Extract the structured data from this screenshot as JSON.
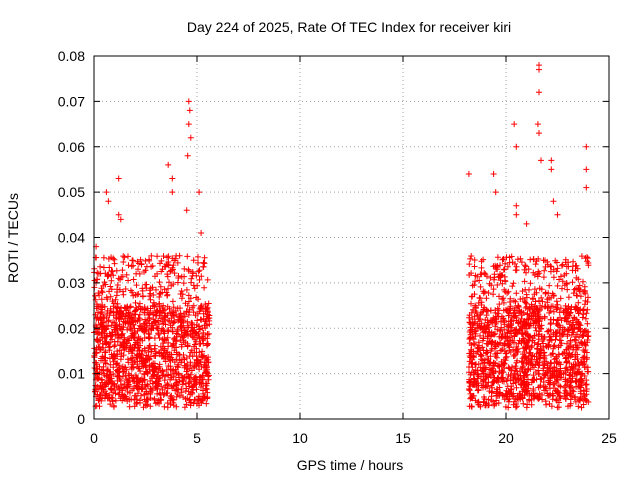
{
  "chart_data": {
    "type": "scatter",
    "title": "Day 224 of 2025, Rate Of TEC Index for receiver kiri",
    "xlabel": "GPS time / hours",
    "ylabel": "ROTI / TECUs",
    "xlim": [
      0,
      25
    ],
    "ylim": [
      0,
      0.08
    ],
    "x_ticks": [
      0,
      5,
      10,
      15,
      20,
      25
    ],
    "x_tick_labels": [
      "0",
      "5",
      "10",
      "15",
      "20",
      "25"
    ],
    "y_ticks": [
      0,
      0.01,
      0.02,
      0.03,
      0.04,
      0.05,
      0.06,
      0.07,
      0.08
    ],
    "y_tick_labels": [
      "0",
      "0.01",
      "0.02",
      "0.03",
      "0.04",
      "0.05",
      "0.06",
      "0.07",
      "0.08"
    ],
    "grid": true,
    "marker": "+",
    "marker_color": "#ff0000",
    "series": [
      {
        "name": "ROTI",
        "segments": [
          {
            "x_range": [
              0.0,
              5.6
            ],
            "typical_y_range": [
              0.004,
              0.025
            ],
            "note": "dense band, sampled"
          },
          {
            "x_range": [
              18.2,
              24.0
            ],
            "typical_y_range": [
              0.004,
              0.025
            ],
            "note": "dense band, sampled"
          }
        ],
        "notable_points": [
          {
            "x": 0.1,
            "y": 0.038
          },
          {
            "x": 0.1,
            "y": 0.03
          },
          {
            "x": 0.6,
            "y": 0.05
          },
          {
            "x": 0.7,
            "y": 0.048
          },
          {
            "x": 1.2,
            "y": 0.053
          },
          {
            "x": 1.2,
            "y": 0.045
          },
          {
            "x": 1.3,
            "y": 0.044
          },
          {
            "x": 3.6,
            "y": 0.056
          },
          {
            "x": 3.8,
            "y": 0.053
          },
          {
            "x": 3.8,
            "y": 0.05
          },
          {
            "x": 4.5,
            "y": 0.046
          },
          {
            "x": 4.6,
            "y": 0.07
          },
          {
            "x": 4.65,
            "y": 0.068
          },
          {
            "x": 4.6,
            "y": 0.065
          },
          {
            "x": 4.7,
            "y": 0.062
          },
          {
            "x": 4.55,
            "y": 0.058
          },
          {
            "x": 5.1,
            "y": 0.05
          },
          {
            "x": 5.2,
            "y": 0.041
          },
          {
            "x": 18.2,
            "y": 0.054
          },
          {
            "x": 19.4,
            "y": 0.054
          },
          {
            "x": 19.5,
            "y": 0.05
          },
          {
            "x": 20.4,
            "y": 0.065
          },
          {
            "x": 20.5,
            "y": 0.06
          },
          {
            "x": 20.5,
            "y": 0.047
          },
          {
            "x": 20.5,
            "y": 0.045
          },
          {
            "x": 21.0,
            "y": 0.043
          },
          {
            "x": 21.6,
            "y": 0.078
          },
          {
            "x": 21.6,
            "y": 0.077
          },
          {
            "x": 21.6,
            "y": 0.072
          },
          {
            "x": 21.55,
            "y": 0.065
          },
          {
            "x": 21.6,
            "y": 0.063
          },
          {
            "x": 21.7,
            "y": 0.057
          },
          {
            "x": 22.2,
            "y": 0.057
          },
          {
            "x": 22.2,
            "y": 0.055
          },
          {
            "x": 22.3,
            "y": 0.048
          },
          {
            "x": 22.5,
            "y": 0.045
          },
          {
            "x": 23.9,
            "y": 0.06
          },
          {
            "x": 23.9,
            "y": 0.055
          },
          {
            "x": 23.9,
            "y": 0.051
          }
        ]
      }
    ]
  }
}
